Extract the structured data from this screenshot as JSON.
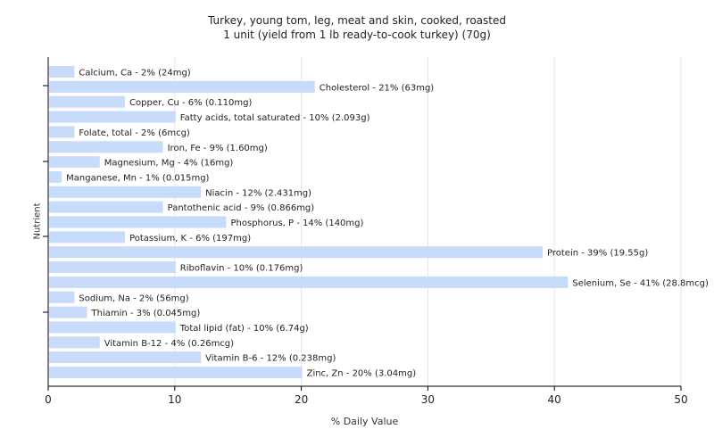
{
  "chart_data": {
    "type": "bar",
    "orientation": "horizontal",
    "title": "Turkey, young tom, leg, meat and skin, cooked, roasted",
    "subtitle": "1 unit (yield from 1 lb ready-to-cook turkey) (70g)",
    "xlabel": "% Daily Value",
    "ylabel": "Nutrient",
    "xlim": [
      0,
      50
    ],
    "xticks": [
      0,
      10,
      20,
      30,
      40,
      50
    ],
    "grid": true,
    "bar_color": "#c6dcfa",
    "categories": [
      "Calcium, Ca",
      "Cholesterol",
      "Copper, Cu",
      "Fatty acids, total saturated",
      "Folate, total",
      "Iron, Fe",
      "Magnesium, Mg",
      "Manganese, Mn",
      "Niacin",
      "Pantothenic acid",
      "Phosphorus, P",
      "Potassium, K",
      "Protein",
      "Riboflavin",
      "Selenium, Se",
      "Sodium, Na",
      "Thiamin",
      "Total lipid (fat)",
      "Vitamin B-12",
      "Vitamin B-6",
      "Zinc, Zn"
    ],
    "values": [
      2,
      21,
      6,
      10,
      2,
      9,
      4,
      1,
      12,
      9,
      14,
      6,
      39,
      10,
      41,
      2,
      3,
      10,
      4,
      12,
      20
    ],
    "labels": [
      "Calcium, Ca - 2% (24mg)",
      "Cholesterol - 21% (63mg)",
      "Copper, Cu - 6% (0.110mg)",
      "Fatty acids, total saturated - 10% (2.093g)",
      "Folate, total - 2% (6mcg)",
      "Iron, Fe - 9% (1.60mg)",
      "Magnesium, Mg - 4% (16mg)",
      "Manganese, Mn - 1% (0.015mg)",
      "Niacin - 12% (2.431mg)",
      "Pantothenic acid - 9% (0.866mg)",
      "Phosphorus, P - 14% (140mg)",
      "Potassium, K - 6% (197mg)",
      "Protein - 39% (19.55g)",
      "Riboflavin - 10% (0.176mg)",
      "Selenium, Se - 41% (28.8mcg)",
      "Sodium, Na - 2% (56mg)",
      "Thiamin - 3% (0.045mg)",
      "Total lipid (fat) - 10% (6.74g)",
      "Vitamin B-12 - 4% (0.26mcg)",
      "Vitamin B-6 - 12% (0.238mg)",
      "Zinc, Zn - 20% (3.04mg)"
    ]
  }
}
